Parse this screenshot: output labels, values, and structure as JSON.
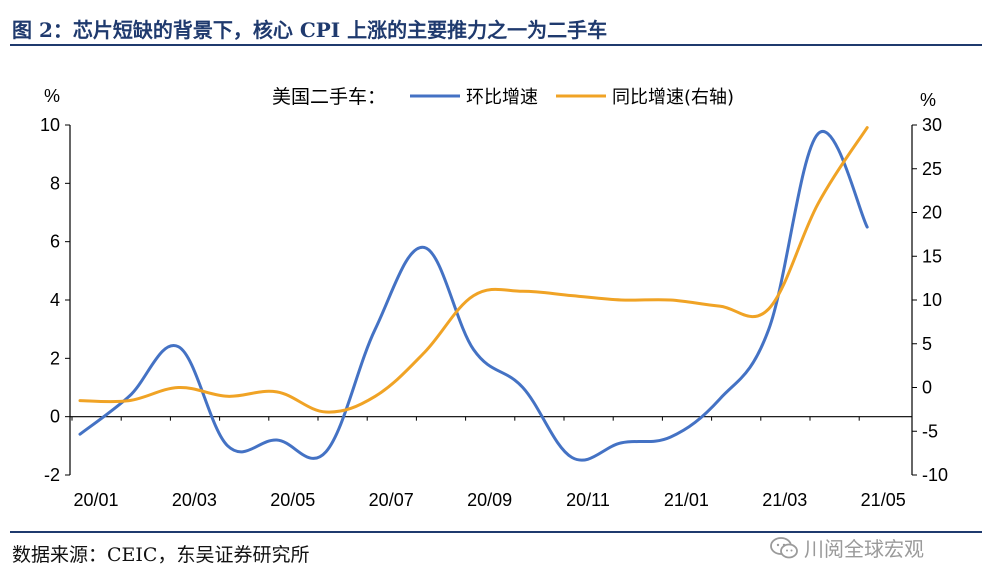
{
  "figure": {
    "title": "图 2：芯片短缺的背景下，核心 CPI 上涨的主要推力之一为二手车",
    "source": "数据来源：CEIC，东吴证券研究所",
    "watermark": "川阅全球宏观",
    "watermark_icon": "wechat-icon"
  },
  "chart_data": {
    "type": "line",
    "title": "",
    "legend_title": "美国二手车：",
    "legend_position": "top-center",
    "grid": false,
    "x": [
      "20/01",
      "20/02",
      "20/03",
      "20/04",
      "20/05",
      "20/06",
      "20/07",
      "20/08",
      "20/09",
      "20/10",
      "20/11",
      "20/12",
      "21/01",
      "21/02",
      "21/03",
      "21/04",
      "21/05"
    ],
    "x_tick_labels": [
      "20/01",
      "20/03",
      "20/05",
      "20/07",
      "20/09",
      "20/11",
      "21/01",
      "21/03",
      "21/05"
    ],
    "left_axis": {
      "unit": "%",
      "ylim": [
        -2,
        10
      ],
      "ticks": [
        -2,
        0,
        2,
        4,
        6,
        8,
        10
      ]
    },
    "right_axis": {
      "unit": "%",
      "ylim": [
        -10,
        30
      ],
      "ticks": [
        -10,
        -5,
        0,
        5,
        10,
        15,
        20,
        25,
        30
      ]
    },
    "series": [
      {
        "name": "环比增速",
        "axis": "left",
        "color": "#4472c4",
        "values": [
          -0.6,
          0.7,
          2.4,
          -1.0,
          -0.8,
          -1.2,
          3.0,
          5.8,
          2.3,
          1.0,
          -1.4,
          -0.9,
          -0.7,
          0.6,
          3.0,
          9.7,
          6.5
        ]
      },
      {
        "name": "同比增速(右轴)",
        "axis": "right",
        "color": "#f0a325",
        "values": [
          -1.5,
          -1.5,
          0.0,
          -1.0,
          -0.5,
          -2.8,
          -1.0,
          4.0,
          10.5,
          11.0,
          10.5,
          10.0,
          10.0,
          9.3,
          9.0,
          21.0,
          29.7
        ]
      }
    ]
  }
}
